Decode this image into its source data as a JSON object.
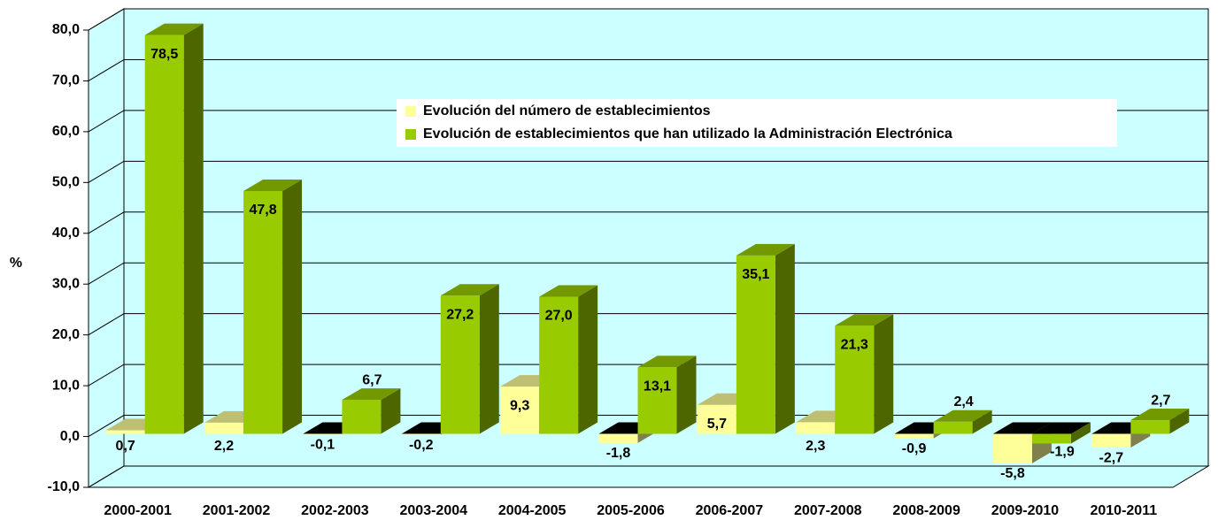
{
  "chart_data": {
    "type": "bar3d",
    "y_label": "%",
    "categories": [
      "2000-2001",
      "2001-2002",
      "2002-2003",
      "2003-2004",
      "2004-2005",
      "2005-2006",
      "2006-2007",
      "2007-2008",
      "2008-2009",
      "2009-2010",
      "2010-2011"
    ],
    "series": [
      {
        "name": "Evolución del número de establecimientos",
        "color": "#ffff99",
        "values": [
          0.7,
          2.2,
          -0.1,
          -0.2,
          9.3,
          -1.8,
          5.7,
          2.3,
          -0.9,
          -5.8,
          -2.7
        ],
        "value_labels": [
          "0,7",
          "2,2",
          "-0,1",
          "-0,2",
          "9,3",
          "-1,8",
          "5,7",
          "2,3",
          "-0,9",
          "-5,8",
          "-2,7"
        ]
      },
      {
        "name": "Evolución de establecimientos que han utilizado la Administración Electrónica",
        "color": "#99cc00",
        "values": [
          78.5,
          47.8,
          6.7,
          27.2,
          27.0,
          13.1,
          35.1,
          21.3,
          2.4,
          -1.9,
          2.7
        ],
        "value_labels": [
          "78,5",
          "47,8",
          "6,7",
          "27,2",
          "27,0",
          "13,1",
          "35,1",
          "21,3",
          "2,4",
          "-1,9",
          "2,7"
        ]
      }
    ],
    "ylim": [
      -10,
      80
    ],
    "yticks": [
      {
        "value": -10,
        "label": "-10,0"
      },
      {
        "value": 0,
        "label": "0,0"
      },
      {
        "value": 10,
        "label": "10,0"
      },
      {
        "value": 20,
        "label": "20,0"
      },
      {
        "value": 30,
        "label": "30,0"
      },
      {
        "value": 40,
        "label": "40,0"
      },
      {
        "value": 50,
        "label": "50,0"
      },
      {
        "value": 60,
        "label": "60,0"
      },
      {
        "value": 70,
        "label": "70,0"
      },
      {
        "value": 80,
        "label": "80,0"
      }
    ],
    "grid": true,
    "wall_color": "#ccffff"
  }
}
